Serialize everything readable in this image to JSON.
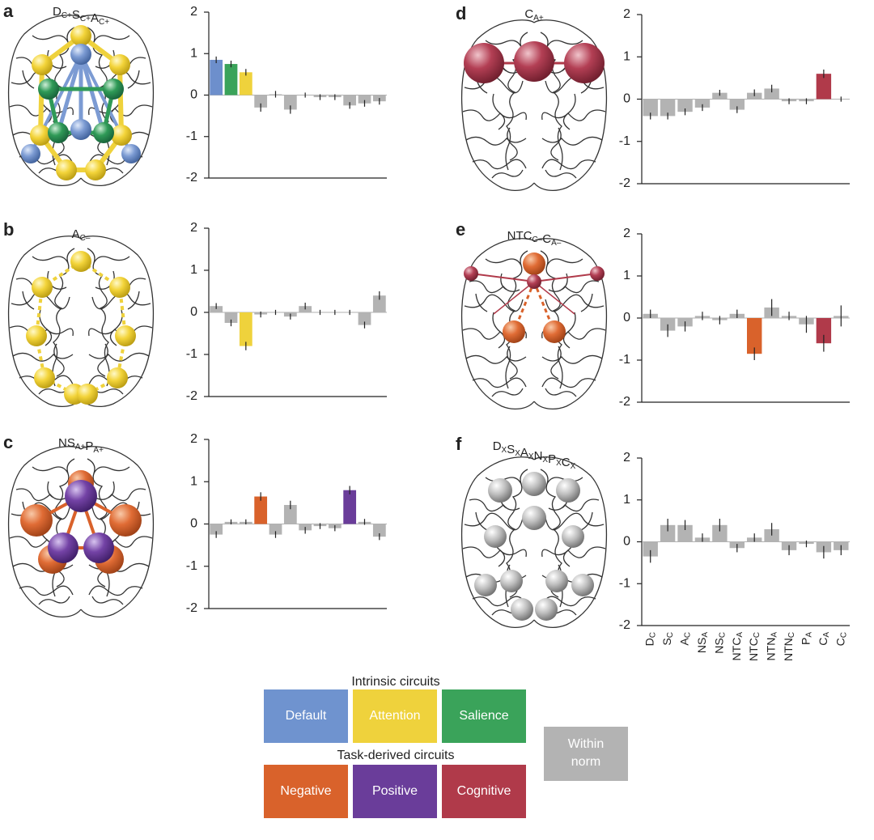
{
  "panels": [
    {
      "label": "a",
      "title": [
        [
          "D",
          "C+"
        ],
        [
          "S",
          "C+"
        ],
        [
          "A",
          "C+"
        ]
      ]
    },
    {
      "label": "b",
      "title": [
        [
          "A",
          "C–"
        ]
      ]
    },
    {
      "label": "c",
      "title": [
        [
          "NS",
          "A+"
        ],
        [
          "P",
          "A+"
        ]
      ]
    },
    {
      "label": "d",
      "title": [
        [
          "C",
          "A+"
        ]
      ]
    },
    {
      "label": "e",
      "title": [
        [
          "NTC",
          "C–"
        ],
        [
          "C",
          "A–"
        ]
      ]
    },
    {
      "label": "f",
      "title": [
        [
          "D",
          "X"
        ],
        [
          "S",
          "X"
        ],
        [
          "A",
          "X"
        ],
        [
          "N",
          "X"
        ],
        [
          "P",
          "X"
        ],
        [
          "C",
          "X"
        ]
      ]
    }
  ],
  "chart_data": [
    {
      "type": "bar",
      "ylim": [
        -2,
        2
      ],
      "yticks": [
        -2,
        -1,
        0,
        1,
        2
      ],
      "values": [
        0.85,
        0.75,
        0.55,
        -0.3,
        0.02,
        -0.35,
        0,
        -0.05,
        -0.05,
        -0.25,
        -0.2,
        -0.15
      ],
      "errors": [
        0.08,
        0.08,
        0.08,
        0.1,
        0.08,
        0.1,
        0.06,
        0.07,
        0.07,
        0.08,
        0.08,
        0.08
      ],
      "colors": [
        "#6d8fcc",
        "#3aa35a",
        "#efd23c",
        "#b3b3b3",
        "#b3b3b3",
        "#b3b3b3",
        "#b3b3b3",
        "#b3b3b3",
        "#b3b3b3",
        "#b3b3b3",
        "#b3b3b3",
        "#b3b3b3"
      ]
    },
    {
      "type": "bar",
      "ylim": [
        -2,
        2
      ],
      "yticks": [
        -2,
        -1,
        0,
        1,
        2
      ],
      "values": [
        0.15,
        -0.25,
        -0.8,
        -0.05,
        0,
        -0.1,
        0.15,
        0,
        0,
        0,
        -0.3,
        0.4
      ],
      "errors": [
        0.07,
        0.08,
        0.1,
        0.07,
        0.06,
        0.07,
        0.08,
        0.06,
        0.06,
        0.06,
        0.08,
        0.1
      ],
      "colors": [
        "#b3b3b3",
        "#b3b3b3",
        "#efd23c",
        "#b3b3b3",
        "#b3b3b3",
        "#b3b3b3",
        "#b3b3b3",
        "#b3b3b3",
        "#b3b3b3",
        "#b3b3b3",
        "#b3b3b3",
        "#b3b3b3"
      ]
    },
    {
      "type": "bar",
      "ylim": [
        -2,
        2
      ],
      "yticks": [
        -2,
        -1,
        0,
        1,
        2
      ],
      "values": [
        -0.25,
        0.05,
        0.05,
        0.65,
        -0.25,
        0.45,
        -0.15,
        -0.05,
        -0.1,
        0.8,
        0.05,
        -0.3
      ],
      "errors": [
        0.08,
        0.06,
        0.06,
        0.1,
        0.08,
        0.1,
        0.08,
        0.07,
        0.07,
        0.1,
        0.07,
        0.08
      ],
      "colors": [
        "#b3b3b3",
        "#b3b3b3",
        "#b3b3b3",
        "#d9622b",
        "#b3b3b3",
        "#b3b3b3",
        "#b3b3b3",
        "#b3b3b3",
        "#b3b3b3",
        "#6a3d9a",
        "#b3b3b3",
        "#b3b3b3"
      ]
    },
    {
      "type": "bar",
      "ylim": [
        -2,
        2
      ],
      "yticks": [
        -2,
        -1,
        0,
        1,
        2
      ],
      "values": [
        -0.4,
        -0.4,
        -0.3,
        -0.2,
        0.15,
        -0.25,
        0.15,
        0.25,
        -0.05,
        -0.05,
        0.6,
        0
      ],
      "errors": [
        0.08,
        0.08,
        0.08,
        0.08,
        0.07,
        0.08,
        0.08,
        0.09,
        0.07,
        0.07,
        0.1,
        0.06
      ],
      "colors": [
        "#b3b3b3",
        "#b3b3b3",
        "#b3b3b3",
        "#b3b3b3",
        "#b3b3b3",
        "#b3b3b3",
        "#b3b3b3",
        "#b3b3b3",
        "#b3b3b3",
        "#b3b3b3",
        "#b03a4a",
        "#b3b3b3"
      ]
    },
    {
      "type": "bar",
      "ylim": [
        -2,
        2
      ],
      "yticks": [
        -2,
        -1,
        0,
        1,
        2
      ],
      "values": [
        0.1,
        -0.3,
        -0.2,
        0.05,
        -0.05,
        0.1,
        -0.85,
        0.25,
        0.05,
        -0.15,
        -0.6,
        0.05
      ],
      "errors": [
        0.1,
        0.15,
        0.12,
        0.1,
        0.1,
        0.1,
        0.15,
        0.2,
        0.1,
        0.2,
        0.2,
        0.25
      ],
      "colors": [
        "#b3b3b3",
        "#b3b3b3",
        "#b3b3b3",
        "#b3b3b3",
        "#b3b3b3",
        "#b3b3b3",
        "#d9622b",
        "#b3b3b3",
        "#b3b3b3",
        "#b3b3b3",
        "#b03a4a",
        "#b3b3b3"
      ]
    },
    {
      "type": "bar",
      "ylim": [
        -2,
        2
      ],
      "yticks": [
        -2,
        -1,
        0,
        1,
        2
      ],
      "categories": [
        "DC",
        "SC",
        "AC",
        "NSA",
        "NSC",
        "NTCA",
        "NTCC",
        "NTNA",
        "NTNC",
        "PA",
        "CA",
        "CC"
      ],
      "values": [
        -0.35,
        0.4,
        0.4,
        0.1,
        0.4,
        -0.15,
        0.1,
        0.3,
        -0.2,
        -0.05,
        -0.25,
        -0.2
      ],
      "errors": [
        0.15,
        0.15,
        0.12,
        0.1,
        0.15,
        0.1,
        0.1,
        0.15,
        0.12,
        0.08,
        0.15,
        0.12
      ],
      "colors": [
        "#b3b3b3",
        "#b3b3b3",
        "#b3b3b3",
        "#b3b3b3",
        "#b3b3b3",
        "#b3b3b3",
        "#b3b3b3",
        "#b3b3b3",
        "#b3b3b3",
        "#b3b3b3",
        "#b3b3b3",
        "#b3b3b3"
      ]
    }
  ],
  "legend": {
    "intrinsic_title": "Intrinsic circuits",
    "intrinsic": [
      {
        "label": "Default",
        "color": "#6f93cf"
      },
      {
        "label": "Attention",
        "color": "#efd23c"
      },
      {
        "label": "Salience",
        "color": "#3aa35a"
      }
    ],
    "task_title": "Task-derived circuits",
    "task": [
      {
        "label": "Negative",
        "color": "#d9622b"
      },
      {
        "label": "Positive",
        "color": "#6a3d9a"
      },
      {
        "label": "Cognitive",
        "color": "#b03a4a"
      }
    ],
    "within_norm": {
      "lines": [
        "Within",
        "norm"
      ],
      "color": "#b3b3b3"
    }
  }
}
